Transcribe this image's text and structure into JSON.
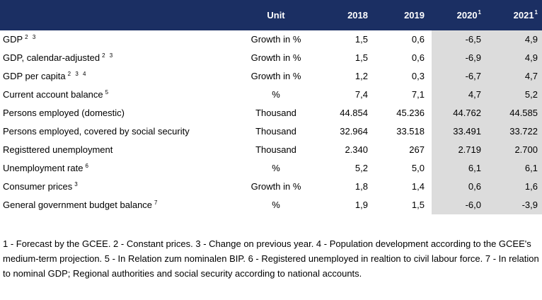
{
  "header": {
    "unit": "Unit",
    "y2018": "2018",
    "y2019": "2019",
    "y2020": "2020",
    "y2020_sup": "1",
    "y2021": "2021",
    "y2021_sup": "1"
  },
  "rows": [
    {
      "label": "GDP",
      "sup": "2 3",
      "unit": "Growth in %",
      "v2018": "1,5",
      "v2019": "0,6",
      "v2020": "-6,5",
      "v2021": "4,9"
    },
    {
      "label": "GDP, calendar-adjusted",
      "sup": "2 3",
      "unit": "Growth in %",
      "v2018": "1,5",
      "v2019": "0,6",
      "v2020": "-6,9",
      "v2021": "4,9"
    },
    {
      "label": "GDP per capita",
      "sup": "2 3 4",
      "unit": "Growth in %",
      "v2018": "1,2",
      "v2019": "0,3",
      "v2020": "-6,7",
      "v2021": "4,7"
    },
    {
      "label": "Current account balance",
      "sup": "5",
      "unit": "%",
      "v2018": "7,4",
      "v2019": "7,1",
      "v2020": "4,7",
      "v2021": "5,2"
    },
    {
      "label": "Persons employed (domestic)",
      "sup": "",
      "unit": "Thousand",
      "v2018": "44.854",
      "v2019": "45.236",
      "v2020": "44.762",
      "v2021": "44.585"
    },
    {
      "label": "Persons employed, covered by social security",
      "sup": "",
      "unit": "Thousand",
      "v2018": "32.964",
      "v2019": "33.518",
      "v2020": "33.491",
      "v2021": "33.722"
    },
    {
      "label": "Registtered unemployment",
      "sup": "",
      "unit": "Thousand",
      "v2018": "2.340",
      "v2019": "267",
      "v2020": "2.719",
      "v2021": "2.700"
    },
    {
      "label": "Unemployment rate",
      "sup": "6",
      "unit": "%",
      "v2018": "5,2",
      "v2019": "5,0",
      "v2020": "6,1",
      "v2021": "6,1"
    },
    {
      "label": "Consumer prices",
      "sup": "3",
      "unit": "Growth in %",
      "v2018": "1,8",
      "v2019": "1,4",
      "v2020": "0,6",
      "v2021": "1,6"
    },
    {
      "label": "General government budget balance",
      "sup": "7",
      "unit": "%",
      "v2018": "1,9",
      "v2019": "1,5",
      "v2020": "-6,0",
      "v2021": "-3,9"
    }
  ],
  "footnote": "1 - Forecast by the GCEE. 2 - Constant prices. 3 - Change on previous year. 4 - Population development according to the GCEE's medium-term projection. 5 - In Relation zum nominalen BIP. 6 - Registered unemployed in realtion to civil labour force. 7 - In relation to nominal GDP; Regional authorities and social security according to national accounts.",
  "colors": {
    "header_bg": "#1b2f63",
    "forecast_shade": "#dcdcdc"
  }
}
